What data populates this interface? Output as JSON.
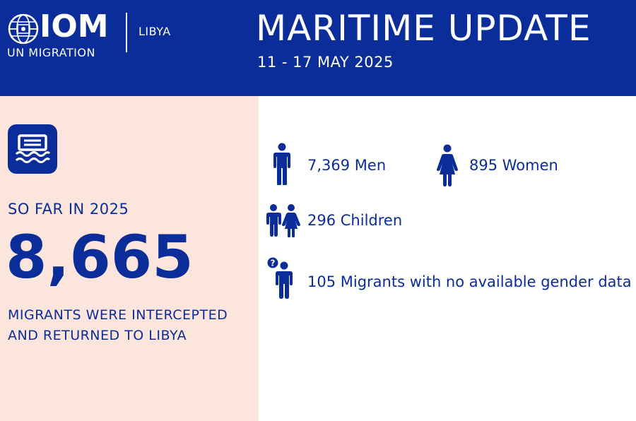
{
  "header": {
    "logo_text": "IOM",
    "logo_subtitle": "UN MIGRATION",
    "country": "LIBYA",
    "title": "MARITIME UPDATE",
    "date_range": "11 - 17 MAY 2025"
  },
  "summary": {
    "icon": "boat-icon",
    "period_label": "SO FAR IN 2025",
    "total": "8,665",
    "description": "MIGRANTS WERE INTERCEPTED AND RETURNED TO LIBYA"
  },
  "breakdown": {
    "men": {
      "icon": "man-icon",
      "text": "7,369 Men"
    },
    "women": {
      "icon": "woman-icon",
      "text": "895 Women"
    },
    "children": {
      "icon": "children-icon",
      "text": "296 Children"
    },
    "unknown": {
      "icon": "unknown-gender-icon",
      "text": "105 Migrants with no available gender data"
    }
  },
  "colors": {
    "brand_blue": "#0b2d9a",
    "panel_pink": "#fbe5dd",
    "background": "#ffffff"
  }
}
